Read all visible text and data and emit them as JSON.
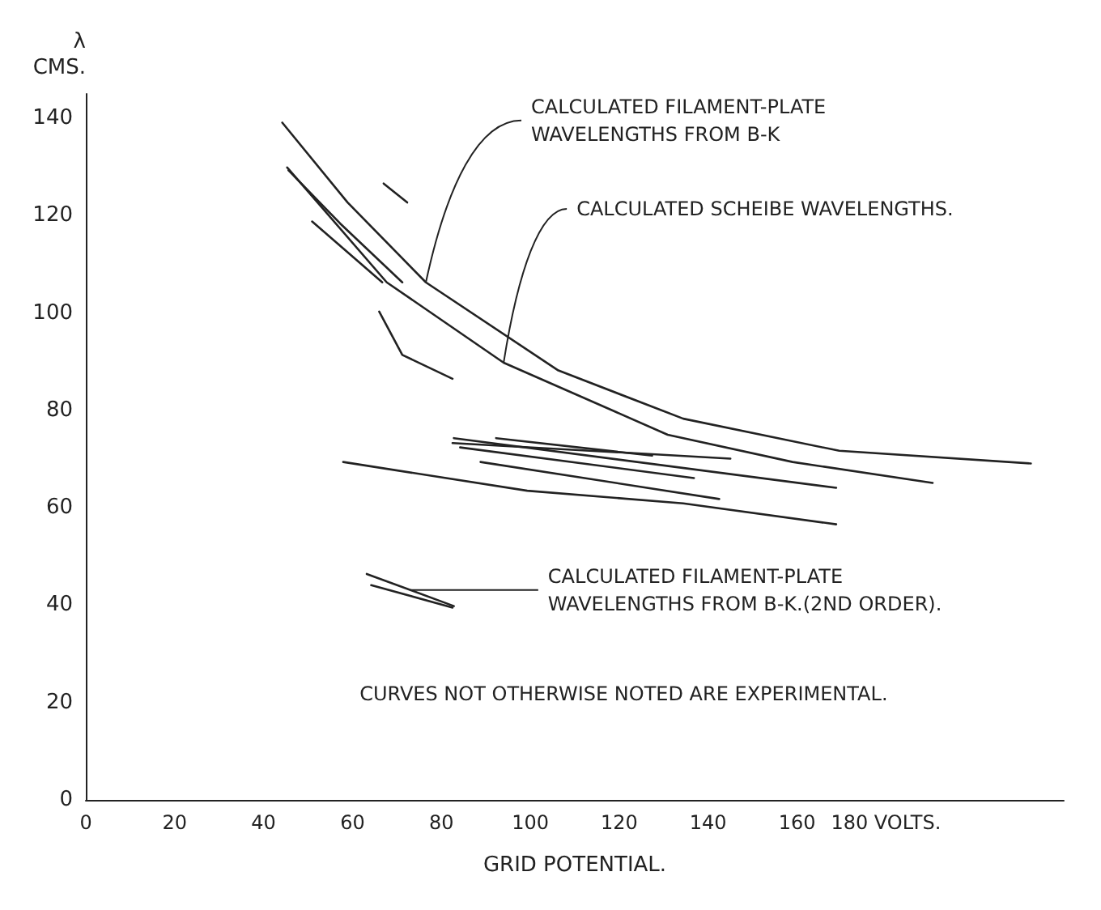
{
  "chart_data": {
    "type": "line",
    "xlabel": "GRID POTENTIAL.",
    "ylabel": "λ\nCMS.",
    "xlim": [
      0,
      220
    ],
    "xticks": [
      0,
      20,
      40,
      60,
      80,
      100,
      120,
      140,
      160,
      {
        "value": 180,
        "label": "180 VOLTS."
      }
    ],
    "ylim": [
      0,
      145
    ],
    "yticks": [
      0,
      20,
      40,
      60,
      80,
      100,
      120,
      140
    ],
    "grid": false,
    "marker": "none",
    "line_style": "solid",
    "series": [
      {
        "color": "#222222",
        "x": [
          44.2,
          58.9,
          76.5,
          106.3,
          134.4,
          169.5,
          212.6
        ],
        "values": [
          139.1,
          122.7,
          106.3,
          88.2,
          78.3,
          71.7,
          69.1
        ]
      },
      {
        "color": "#222222",
        "x": [
          45.3,
          67.7,
          94,
          130.9,
          159,
          190.5
        ],
        "values": [
          129.9,
          106.3,
          89.8,
          75,
          69.4,
          65.1
        ]
      },
      {
        "color": "#222222",
        "x": [
          45.6,
          57.2,
          71.2
        ],
        "values": [
          129.3,
          118.4,
          106.3
        ]
      },
      {
        "color": "#222222",
        "x": [
          50.9,
          66.7
        ],
        "values": [
          118.8,
          106.3
        ]
      },
      {
        "color": "#222222",
        "x": [
          67,
          72.3
        ],
        "values": [
          126.6,
          122.7
        ]
      },
      {
        "color": "#222222",
        "x": [
          66,
          71.2,
          82.5
        ],
        "values": [
          100.3,
          91.4,
          86.5
        ]
      },
      {
        "color": "#222222",
        "x": [
          57.9,
          99.3,
          134.4,
          168.8
        ],
        "values": [
          69.4,
          63.5,
          60.9,
          56.6
        ]
      },
      {
        "color": "#222222",
        "x": [
          82.8,
          168.8
        ],
        "values": [
          74.3,
          64.1
        ]
      },
      {
        "color": "#222222",
        "x": [
          82.5,
          145
        ],
        "values": [
          73.3,
          70.1
        ]
      },
      {
        "color": "#222222",
        "x": [
          84.2,
          136.8
        ],
        "values": [
          72.4,
          66.1
        ]
      },
      {
        "color": "#222222",
        "x": [
          88.8,
          142.5
        ],
        "values": [
          69.4,
          61.8
        ]
      },
      {
        "color": "#222222",
        "x": [
          92.3,
          127.4
        ],
        "values": [
          74.3,
          70.7
        ]
      },
      {
        "color": "#222222",
        "x": [
          63.2,
          82.8
        ],
        "values": [
          46.4,
          39.8
        ]
      },
      {
        "color": "#222222",
        "x": [
          64.2,
          82.5
        ],
        "values": [
          44.1,
          39.5
        ]
      }
    ],
    "annotations": [
      {
        "text": "CALCULATED FILAMENT-PLATE\nWAVELENGTHS FROM B-K",
        "x": 76.5,
        "y": 106.3
      },
      {
        "text": "CALCULATED SCHEIBE WAVELENGTHS.",
        "x": 94,
        "y": 89.8
      },
      {
        "text": "CALCULATED FILAMENT-PLATE\nWAVELENGTHS FROM B-K.(2ND ORDER).",
        "x": 73,
        "y": 43.1
      },
      "CURVES NOT OTHERWISE NOTED ARE EXPERIMENTAL."
    ]
  }
}
